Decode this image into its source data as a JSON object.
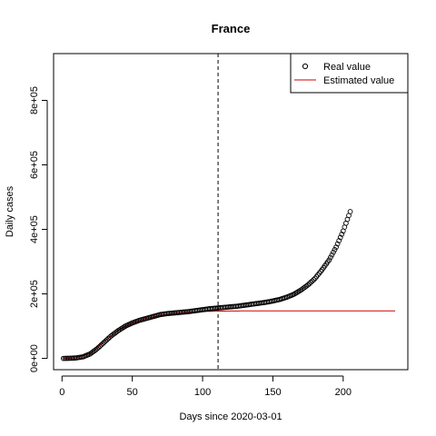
{
  "chart_data": {
    "type": "scatter",
    "title": "France",
    "xlabel": "Days since 2020-03-01",
    "ylabel": "Daily cases",
    "xlim": [
      -6,
      246
    ],
    "ylim": [
      -35000,
      945000
    ],
    "x_ticks": [
      0,
      50,
      100,
      150,
      200
    ],
    "x_tick_labels": [
      "0",
      "50",
      "100",
      "150",
      "200"
    ],
    "y_ticks": [
      0,
      200000,
      400000,
      600000,
      800000
    ],
    "y_tick_labels": [
      "0e+00",
      "2e+05",
      "4e+05",
      "6e+05",
      "8e+05"
    ],
    "vline_x": 111,
    "legend": {
      "position": "top-right",
      "items": [
        "Real value",
        "Estimated value"
      ]
    },
    "series": [
      {
        "name": "Real value",
        "style": "open-circle",
        "color": "#000000",
        "points": [
          [
            1,
            0
          ],
          [
            5,
            300
          ],
          [
            10,
            1500
          ],
          [
            15,
            5000
          ],
          [
            20,
            14000
          ],
          [
            25,
            30000
          ],
          [
            30,
            50000
          ],
          [
            35,
            70000
          ],
          [
            40,
            86000
          ],
          [
            45,
            100000
          ],
          [
            50,
            110000
          ],
          [
            55,
            118000
          ],
          [
            60,
            124000
          ],
          [
            65,
            130000
          ],
          [
            70,
            136000
          ],
          [
            75,
            139000
          ],
          [
            80,
            141000
          ],
          [
            85,
            143000
          ],
          [
            90,
            145000
          ],
          [
            95,
            148000
          ],
          [
            100,
            151000
          ],
          [
            105,
            154000
          ],
          [
            110,
            156000
          ],
          [
            115,
            158000
          ],
          [
            120,
            160000
          ],
          [
            125,
            162000
          ],
          [
            130,
            165000
          ],
          [
            135,
            168000
          ],
          [
            140,
            171000
          ],
          [
            145,
            174000
          ],
          [
            150,
            178000
          ],
          [
            155,
            183000
          ],
          [
            160,
            190000
          ],
          [
            165,
            199000
          ],
          [
            170,
            212000
          ],
          [
            175,
            228000
          ],
          [
            180,
            248000
          ],
          [
            185,
            275000
          ],
          [
            190,
            305000
          ],
          [
            195,
            345000
          ],
          [
            200,
            395000
          ],
          [
            205,
            455000
          ]
        ]
      },
      {
        "name": "Estimated value",
        "style": "line",
        "color": "#cc0000",
        "points": [
          [
            1,
            0
          ],
          [
            10,
            1500
          ],
          [
            20,
            15000
          ],
          [
            30,
            52000
          ],
          [
            40,
            88000
          ],
          [
            50,
            110000
          ],
          [
            60,
            124000
          ],
          [
            70,
            134000
          ],
          [
            80,
            140000
          ],
          [
            90,
            143500
          ],
          [
            100,
            145500
          ],
          [
            110,
            146500
          ],
          [
            120,
            147000
          ],
          [
            140,
            147500
          ],
          [
            160,
            147500
          ],
          [
            200,
            147500
          ],
          [
            237,
            147500
          ]
        ]
      }
    ]
  }
}
